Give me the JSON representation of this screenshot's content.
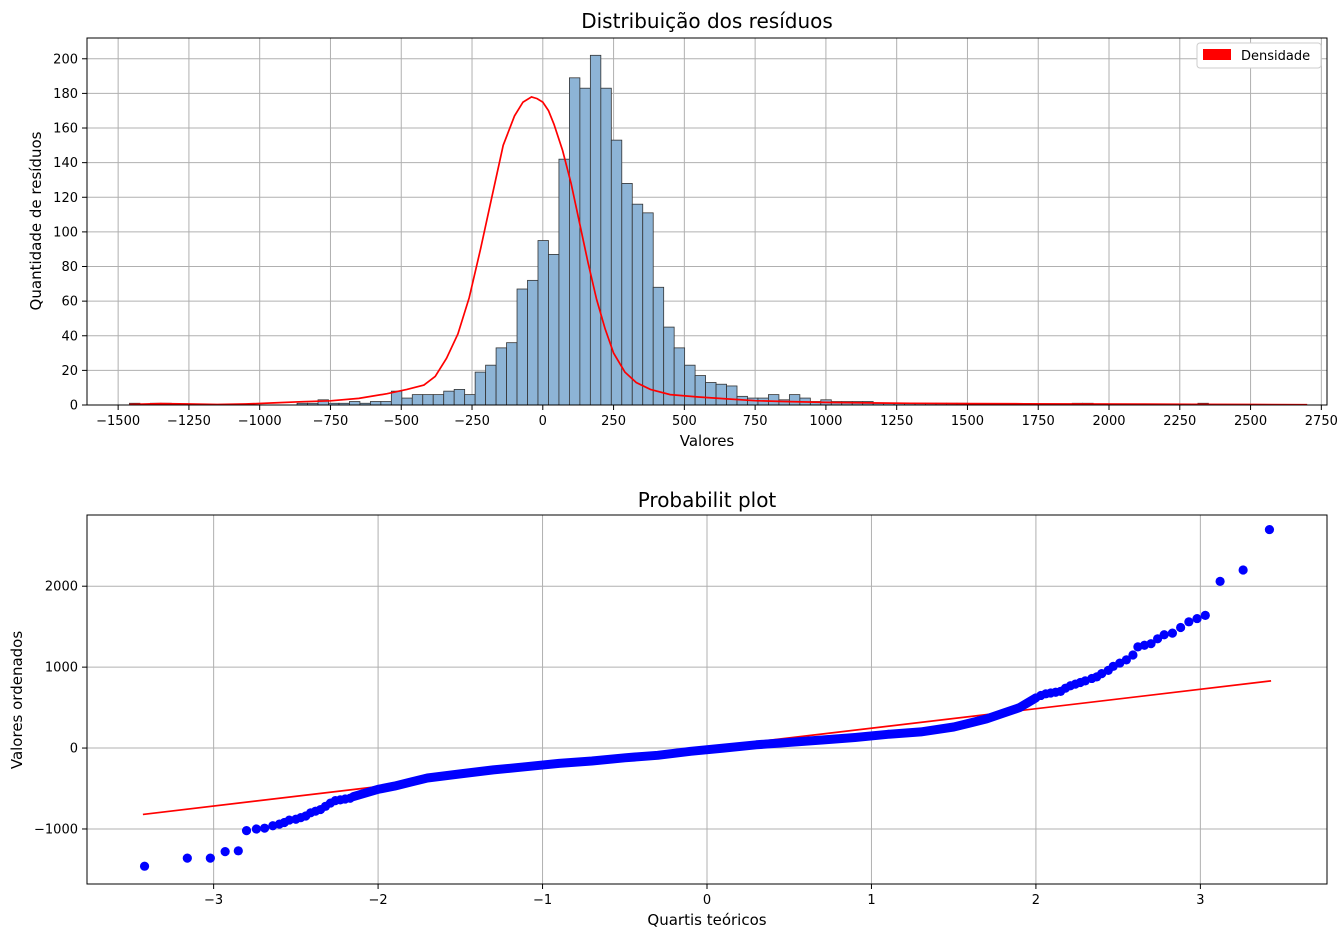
{
  "chart_data": [
    {
      "type": "bar",
      "title": "Distribuição dos resíduos",
      "xlabel": "Valores",
      "ylabel": "Quantidade de resíduos",
      "xlim": [
        -1610,
        2770
      ],
      "ylim": [
        0,
        212
      ],
      "xticks": [
        -1500,
        -1250,
        -1000,
        -750,
        -500,
        -250,
        0,
        250,
        500,
        750,
        1000,
        1250,
        1500,
        1750,
        2000,
        2250,
        2500,
        2750
      ],
      "xtick_labels": [
        "−1500",
        "−1250",
        "−1000",
        "−750",
        "−500",
        "−250",
        "0",
        "250",
        "500",
        "750",
        "1000",
        "1250",
        "1500",
        "1750",
        "2000",
        "2250",
        "2500",
        "2750"
      ],
      "yticks": [
        0,
        20,
        40,
        60,
        80,
        100,
        120,
        140,
        160,
        180,
        200
      ],
      "grid": true,
      "legend": {
        "position": "top-right",
        "entries": [
          {
            "label": "Densidade",
            "color": "#ff0000"
          }
        ]
      },
      "bar_color": "#8db4d6",
      "bar_edge": "#333333",
      "bin_start": -1460,
      "bin_width": 37,
      "counts": [
        1,
        0,
        1,
        1,
        0,
        0,
        0,
        0,
        0,
        0,
        0,
        0,
        0,
        0,
        0,
        0,
        1,
        1,
        3,
        1,
        1,
        2,
        1,
        2,
        2,
        8,
        4,
        6,
        6,
        6,
        8,
        9,
        6,
        19,
        23,
        33,
        36,
        67,
        72,
        95,
        87,
        142,
        189,
        183,
        202,
        183,
        153,
        128,
        116,
        111,
        68,
        45,
        33,
        23,
        17,
        13,
        12,
        11,
        5,
        4,
        4,
        6,
        3,
        6,
        4,
        2,
        3,
        2,
        2,
        2,
        2,
        1,
        1,
        1,
        1,
        1,
        1,
        1,
        1,
        1,
        0,
        0,
        0,
        0,
        0,
        0,
        0,
        0,
        0,
        0,
        1,
        1,
        0,
        0,
        0,
        0,
        0,
        0,
        0,
        0,
        0,
        0,
        1,
        0,
        0,
        0,
        0,
        0,
        0,
        0,
        0,
        0,
        0
      ],
      "density_curve": {
        "name": "Densidade",
        "color": "#ff0000",
        "x": [
          -1460,
          -1350,
          -1250,
          -1150,
          -1050,
          -950,
          -850,
          -750,
          -650,
          -550,
          -480,
          -420,
          -380,
          -340,
          -300,
          -260,
          -220,
          -180,
          -140,
          -100,
          -70,
          -40,
          -20,
          0,
          20,
          40,
          70,
          100,
          130,
          160,
          190,
          220,
          250,
          290,
          330,
          380,
          450,
          550,
          650,
          750,
          850,
          1000,
          1150,
          1300,
          1500,
          1700,
          1900,
          2100,
          2300,
          2500,
          2700
        ],
        "y": [
          0.3,
          0.8,
          0.6,
          0.3,
          0.6,
          1.2,
          1.9,
          2.4,
          3.8,
          6.5,
          9.0,
          11.5,
          16.5,
          27,
          41,
          62,
          90,
          120,
          150,
          167,
          175,
          178,
          177,
          175,
          170,
          162,
          147,
          128,
          105,
          82,
          61,
          44,
          30,
          19,
          13,
          9,
          6,
          4.6,
          3.5,
          2.5,
          2.0,
          1.5,
          1.2,
          1.0,
          0.8,
          0.7,
          0.6,
          0.5,
          0.4,
          0.3,
          0.2
        ]
      }
    },
    {
      "type": "scatter",
      "title": "Probabilit plot",
      "xlabel": "Quartis teóricos",
      "ylabel": "Valores ordenados",
      "xlim": [
        -3.77,
        3.77
      ],
      "ylim": [
        -1680,
        2880
      ],
      "xticks": [
        -3,
        -2,
        -1,
        0,
        1,
        2,
        3
      ],
      "xtick_labels": [
        "−3",
        "−2",
        "−1",
        "0",
        "1",
        "2",
        "3"
      ],
      "yticks": [
        -1000,
        0,
        1000,
        2000
      ],
      "ytick_labels": [
        "−1000",
        "0",
        "1000",
        "2000"
      ],
      "grid": true,
      "point_color": "#0000ff",
      "fit_line": {
        "color": "#ff0000",
        "x": [
          -3.43,
          3.43
        ],
        "y": [
          -820,
          830
        ]
      },
      "extreme_points": [
        [
          -3.42,
          -1460
        ],
        [
          -3.16,
          -1360
        ],
        [
          -3.02,
          -1360
        ],
        [
          -2.93,
          -1280
        ],
        [
          -2.85,
          -1270
        ],
        [
          -2.8,
          -1020
        ],
        [
          -2.74,
          -1000
        ],
        [
          -2.69,
          -990
        ],
        [
          -2.64,
          -960
        ],
        [
          -2.6,
          -940
        ],
        [
          -2.57,
          -920
        ],
        [
          -2.54,
          -890
        ],
        [
          -2.5,
          -880
        ],
        [
          -2.47,
          -860
        ],
        [
          -2.44,
          -840
        ],
        [
          -2.41,
          -800
        ],
        [
          -2.38,
          -780
        ],
        [
          -2.35,
          -760
        ],
        [
          -2.32,
          -720
        ],
        [
          -2.29,
          -680
        ],
        [
          -2.26,
          -650
        ],
        [
          -2.23,
          -640
        ],
        [
          -2.2,
          -630
        ],
        [
          -2.17,
          -620
        ],
        [
          2.03,
          650
        ],
        [
          2.06,
          670
        ],
        [
          2.09,
          680
        ],
        [
          2.12,
          690
        ],
        [
          2.15,
          700
        ],
        [
          2.18,
          740
        ],
        [
          2.21,
          770
        ],
        [
          2.24,
          790
        ],
        [
          2.27,
          810
        ],
        [
          2.3,
          830
        ],
        [
          2.34,
          860
        ],
        [
          2.37,
          880
        ],
        [
          2.4,
          920
        ],
        [
          2.44,
          960
        ],
        [
          2.47,
          1010
        ],
        [
          2.51,
          1050
        ],
        [
          2.55,
          1090
        ],
        [
          2.59,
          1150
        ],
        [
          2.62,
          1250
        ],
        [
          2.66,
          1270
        ],
        [
          2.7,
          1290
        ],
        [
          2.74,
          1350
        ],
        [
          2.78,
          1400
        ],
        [
          2.83,
          1420
        ],
        [
          2.88,
          1490
        ],
        [
          2.93,
          1560
        ],
        [
          2.98,
          1600
        ],
        [
          3.03,
          1640
        ],
        [
          3.12,
          2060
        ],
        [
          3.26,
          2200
        ],
        [
          3.42,
          2700
        ]
      ],
      "body_curve": {
        "x": [
          -2.15,
          -2.0,
          -1.9,
          -1.8,
          -1.7,
          -1.5,
          -1.3,
          -1.1,
          -0.9,
          -0.7,
          -0.5,
          -0.3,
          -0.1,
          0.1,
          0.3,
          0.5,
          0.7,
          0.9,
          1.1,
          1.3,
          1.5,
          1.6,
          1.7,
          1.8,
          1.9,
          2.0
        ],
        "y": [
          -600,
          -510,
          -470,
          -420,
          -370,
          -320,
          -270,
          -230,
          -190,
          -160,
          -120,
          -90,
          -40,
          0,
          40,
          70,
          100,
          130,
          170,
          200,
          260,
          310,
          360,
          430,
          500,
          620
        ]
      }
    }
  ]
}
